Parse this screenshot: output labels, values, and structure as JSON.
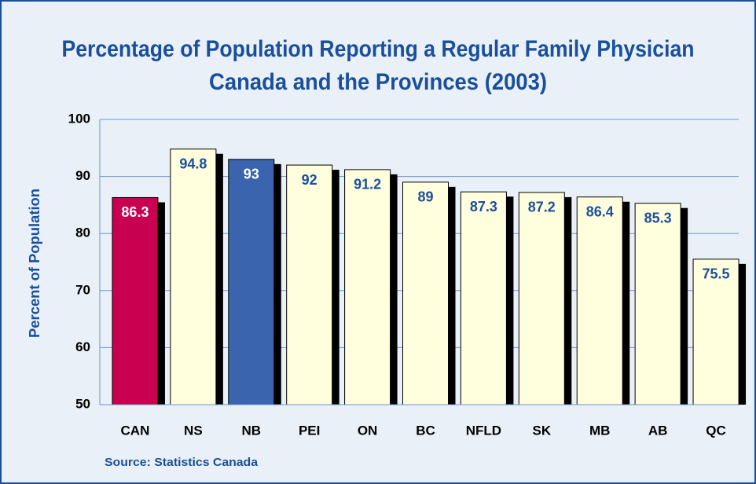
{
  "chart_data": {
    "type": "bar",
    "title": "Percentage of Population Reporting a Regular Family Physician",
    "subtitle": "Canada and the Provinces (2003)",
    "y_label": "Percent of Population",
    "source": "Source:  Statistics Canada",
    "categories": [
      "CAN",
      "NS",
      "NB",
      "PEI",
      "ON",
      "BC",
      "NFLD",
      "SK",
      "MB",
      "AB",
      "QC"
    ],
    "values": [
      86.3,
      94.8,
      93,
      92,
      91.2,
      89,
      87.3,
      87.2,
      86.4,
      85.3,
      75.5
    ],
    "colors": [
      "#c8004f",
      "#ffffdd",
      "#3a64ad",
      "#ffffdd",
      "#ffffdd",
      "#ffffdd",
      "#ffffdd",
      "#ffffdd",
      "#ffffdd",
      "#ffffdd",
      "#ffffdd"
    ],
    "label_colors": [
      "#ffffff",
      "#1a4f9c",
      "#ffffff",
      "#1a4f9c",
      "#1a4f9c",
      "#1a4f9c",
      "#1a4f9c",
      "#1a4f9c",
      "#1a4f9c",
      "#1a4f9c",
      "#1a4f9c"
    ],
    "ylim": [
      50,
      100
    ],
    "yticks": [
      50,
      60,
      70,
      80,
      90,
      100
    ],
    "grid": true
  }
}
